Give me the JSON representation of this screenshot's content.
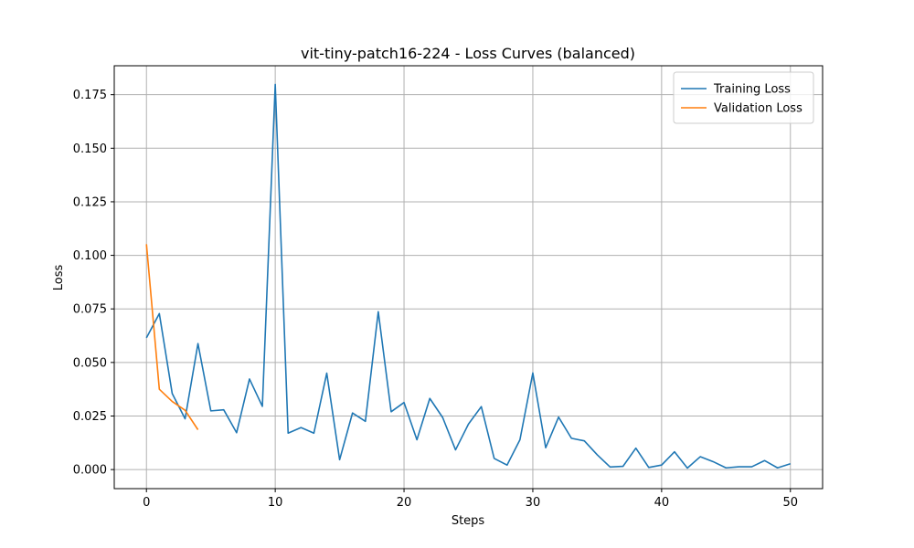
{
  "chart_data": {
    "type": "line",
    "title": "vit-tiny-patch16-224 - Loss Curves (balanced)",
    "xlabel": "Steps",
    "ylabel": "Loss",
    "xlim": [
      -2.5,
      52.5
    ],
    "ylim": [
      -0.0089,
      0.1885
    ],
    "xticks": [
      0,
      10,
      20,
      30,
      40,
      50
    ],
    "yticks": [
      0.0,
      0.025,
      0.05,
      0.075,
      0.1,
      0.125,
      0.15,
      0.175
    ],
    "ytick_labels": [
      "0.000",
      "0.025",
      "0.050",
      "0.075",
      "0.100",
      "0.125",
      "0.150",
      "0.175"
    ],
    "grid": true,
    "legend_position": "top-right",
    "series": [
      {
        "name": "Training Loss",
        "color": "#1f77b4",
        "x": [
          0,
          1,
          2,
          3,
          4,
          5,
          6,
          7,
          8,
          9,
          10,
          11,
          12,
          13,
          14,
          15,
          16,
          17,
          18,
          19,
          20,
          21,
          22,
          23,
          24,
          25,
          26,
          27,
          28,
          29,
          30,
          31,
          32,
          33,
          34,
          35,
          36,
          37,
          38,
          39,
          40,
          41,
          42,
          43,
          44,
          45,
          46,
          47,
          48,
          49,
          50
        ],
        "y": [
          0.0615,
          0.0728,
          0.0355,
          0.0237,
          0.0588,
          0.0274,
          0.0279,
          0.0172,
          0.0423,
          0.0295,
          0.1798,
          0.017,
          0.0196,
          0.017,
          0.045,
          0.0046,
          0.0264,
          0.0225,
          0.0737,
          0.027,
          0.0313,
          0.0139,
          0.0332,
          0.0243,
          0.0092,
          0.0212,
          0.0294,
          0.0052,
          0.0021,
          0.0139,
          0.0451,
          0.0102,
          0.0245,
          0.0146,
          0.0134,
          0.0069,
          0.0012,
          0.0015,
          0.01,
          0.001,
          0.0021,
          0.0083,
          0.0007,
          0.006,
          0.0037,
          0.0008,
          0.0013,
          0.0013,
          0.0042,
          0.0008,
          0.0027
        ]
      },
      {
        "name": "Validation Loss",
        "color": "#ff7f0e",
        "x": [
          0,
          1,
          2,
          3,
          4
        ],
        "y": [
          0.1052,
          0.0375,
          0.0318,
          0.0277,
          0.0186
        ]
      }
    ]
  }
}
